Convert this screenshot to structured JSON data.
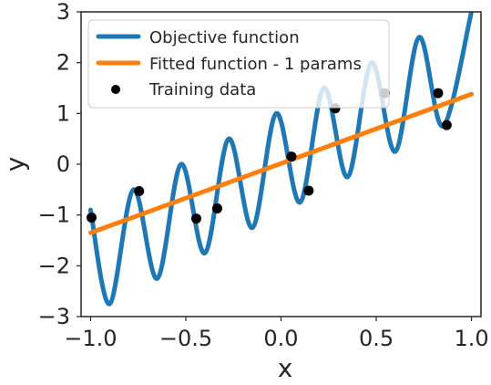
{
  "chart_data": {
    "type": "line",
    "xlabel": "x",
    "ylabel": "y",
    "xlim": [
      -1.05,
      1.05
    ],
    "ylim": [
      -3,
      3
    ],
    "x_ticks": [
      -1.0,
      -0.5,
      0.0,
      0.5,
      1.0
    ],
    "x_tick_labels": [
      "−1.0",
      "−0.5",
      "0.0",
      "0.5",
      "1.0"
    ],
    "y_ticks": [
      -3,
      -2,
      -1,
      0,
      1,
      2,
      3
    ],
    "y_tick_labels": [
      "−3",
      "−2",
      "−1",
      "0",
      "1",
      "2",
      "3"
    ],
    "grid": false,
    "legend_position": "top-left",
    "series": [
      {
        "name": "Objective function",
        "kind": "line",
        "color": "#1f77b4",
        "x": [
          -1.0,
          -0.9,
          -0.775,
          -0.65,
          -0.525,
          -0.4,
          -0.275,
          -0.15,
          -0.025,
          0.1,
          0.225,
          0.35,
          0.475,
          0.6,
          0.725,
          0.85,
          1.0
        ],
        "y": [
          -0.9,
          -2.75,
          -0.5,
          -2.25,
          0.0,
          -1.75,
          0.5,
          -1.25,
          1.0,
          -0.75,
          1.5,
          -0.25,
          2.0,
          0.25,
          2.5,
          0.75,
          3.0
        ]
      },
      {
        "name": "Fitted function - 1 params",
        "kind": "line",
        "color": "#ff7f0e",
        "x": [
          -1.0,
          1.0
        ],
        "y": [
          -1.35,
          1.38
        ]
      },
      {
        "name": "Training data",
        "kind": "scatter",
        "color": "#000000",
        "x": [
          -0.995,
          -0.745,
          -0.445,
          -0.335,
          0.055,
          0.145,
          0.285,
          0.545,
          0.825,
          0.87
        ],
        "y": [
          -1.05,
          -0.53,
          -1.07,
          -0.87,
          0.15,
          -0.52,
          1.1,
          1.4,
          1.4,
          0.77
        ]
      }
    ]
  }
}
